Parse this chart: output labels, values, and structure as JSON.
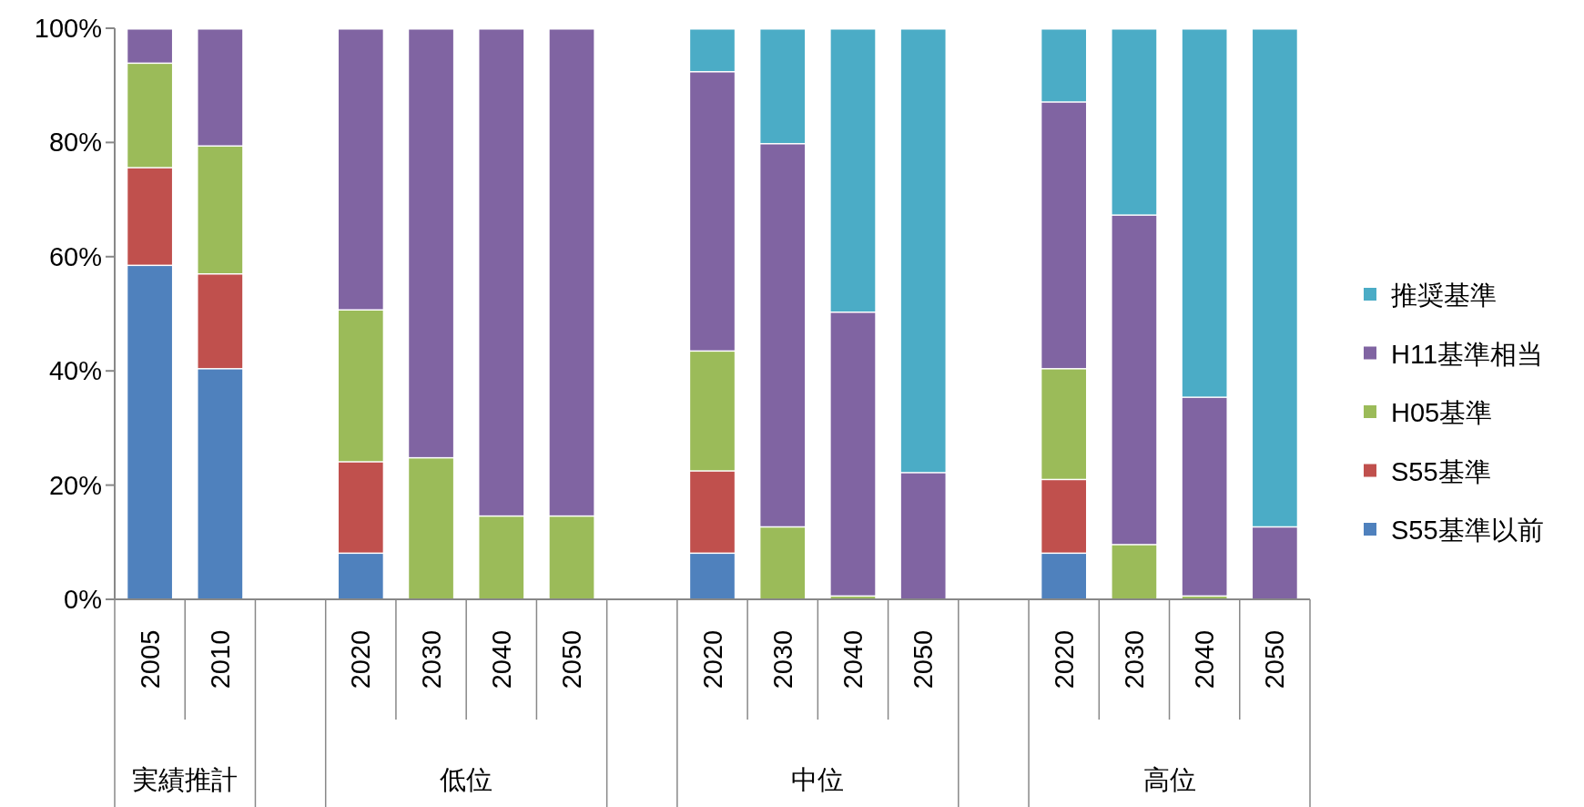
{
  "chart_data": {
    "type": "bar",
    "stacked": true,
    "legend": "right",
    "categories": [
      "2005",
      "2010",
      null,
      "2020",
      "2030",
      "2040",
      "2050",
      null,
      "2020",
      "2030",
      "2040",
      "2050",
      null,
      "2020",
      "2030",
      "2040",
      "2050"
    ],
    "series": [
      {
        "name": "S55基準以前",
        "color": "#4f81bd",
        "values": [
          58.6,
          40.5,
          null,
          8.2,
          null,
          null,
          null,
          null,
          8.2,
          null,
          null,
          null,
          null,
          8.2,
          null,
          null,
          null
        ]
      },
      {
        "name": "S55基準",
        "color": "#c0504d",
        "values": [
          17.1,
          16.6,
          null,
          16.0,
          null,
          null,
          null,
          null,
          14.4,
          null,
          null,
          null,
          null,
          12.9,
          null,
          null,
          null
        ]
      },
      {
        "name": "H05基準",
        "color": "#9bbb59",
        "values": [
          18.3,
          22.4,
          null,
          26.6,
          24.9,
          14.7,
          14.7,
          null,
          21.0,
          12.8,
          0.7,
          null,
          null,
          19.4,
          9.7,
          0.7,
          null
        ]
      },
      {
        "name": "H11基準相当",
        "color": "#8064a2",
        "values": [
          6.0,
          20.5,
          null,
          49.2,
          75.1,
          85.3,
          85.3,
          null,
          48.9,
          67.1,
          49.7,
          22.3,
          null,
          46.7,
          57.7,
          34.8,
          12.8
        ]
      },
      {
        "name": "推奨基準",
        "color": "#4bacc6",
        "values": [
          null,
          null,
          null,
          null,
          null,
          null,
          null,
          null,
          7.5,
          20.1,
          49.6,
          77.7,
          null,
          12.8,
          32.6,
          64.5,
          87.2
        ]
      }
    ],
    "ylim": [
      0,
      100
    ],
    "yticks": [
      {
        "value": 0,
        "label": "0%"
      },
      {
        "value": 20,
        "label": "20%"
      },
      {
        "value": 40,
        "label": "40%"
      },
      {
        "value": 60,
        "label": "60%"
      },
      {
        "value": 80,
        "label": "80%"
      },
      {
        "value": 100,
        "label": "100%"
      }
    ],
    "annotations": [
      "実績推計",
      "低位",
      "中位",
      "高位"
    ]
  }
}
